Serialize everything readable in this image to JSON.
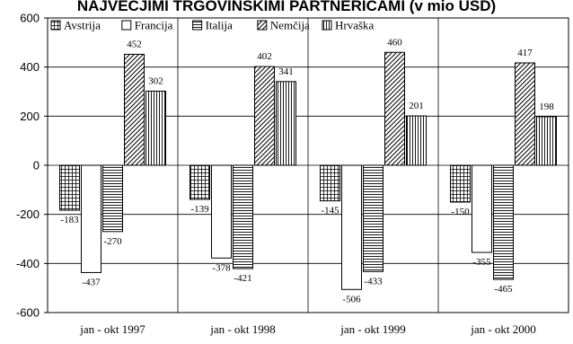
{
  "chart_data": {
    "type": "bar",
    "title": "NAJVEČJIMI TRGOVINSKIMI PARTNERICAMI (v mio USD)",
    "categories": [
      "jan - okt 1997",
      "jan - okt 1998",
      "jan - okt 1999",
      "jan - okt 2000"
    ],
    "series": [
      {
        "name": "Avstrija",
        "values": [
          -183,
          -139,
          -145,
          -150
        ],
        "pattern": "grid",
        "labels": [
          "-183",
          "-139",
          "-145",
          "-150"
        ]
      },
      {
        "name": "Francija",
        "values": [
          -437,
          -378,
          -506,
          -355
        ],
        "pattern": "none",
        "labels": [
          "-437",
          "-378",
          "-506",
          "-355"
        ]
      },
      {
        "name": "Italija",
        "values": [
          -270,
          -421,
          -433,
          -465
        ],
        "pattern": "hlines",
        "labels": [
          "-270",
          "-421",
          "-433",
          "-465"
        ]
      },
      {
        "name": "Nemčija",
        "values": [
          452,
          402,
          460,
          417
        ],
        "pattern": "diagonal",
        "labels": [
          "452",
          "402",
          "460",
          "417"
        ]
      },
      {
        "name": "Hrvaška",
        "values": [
          302,
          341,
          201,
          198
        ],
        "pattern": "vlines",
        "labels": [
          "302",
          "341",
          "201",
          "198"
        ]
      }
    ],
    "ylim": [
      -600,
      600
    ],
    "yticks": [
      600,
      400,
      200,
      0,
      -200,
      -400,
      -600
    ],
    "ytick_labels": [
      "600",
      "400",
      "200",
      "0",
      "-200",
      "-400",
      "-600"
    ],
    "grid": true,
    "legend_position": "top"
  }
}
